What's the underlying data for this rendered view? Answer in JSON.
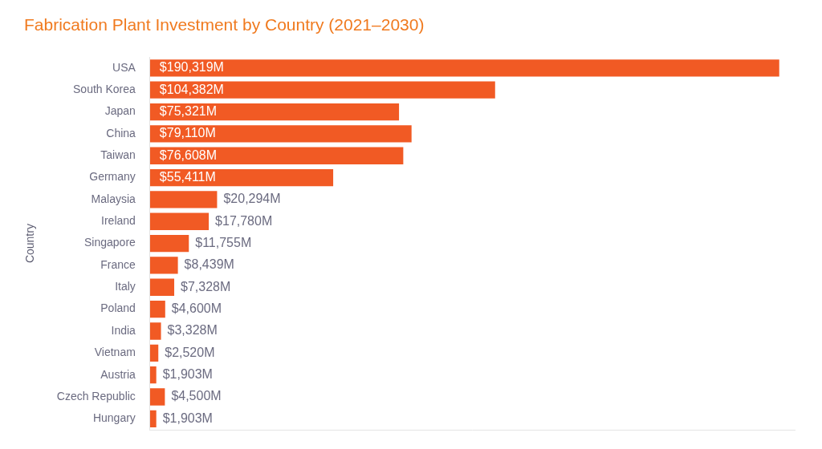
{
  "chart_data": {
    "type": "bar",
    "title": "Fabrication Plant Investment by Country (2021–2030)",
    "ylabel": "Country",
    "categories": [
      "USA",
      "South Korea",
      "Japan",
      "China",
      "Taiwan",
      "Germany",
      "Malaysia",
      "Ireland",
      "Singapore",
      "France",
      "Italy",
      "Poland",
      "India",
      "Vietnam",
      "Austria",
      "Czech Republic",
      "Hungary"
    ],
    "values": [
      190319,
      104382,
      75321,
      79110,
      76608,
      55411,
      20294,
      17780,
      11755,
      8439,
      7328,
      4600,
      3328,
      2520,
      1903,
      4500,
      1903
    ],
    "value_labels": [
      "$190,319M",
      "$104,382M",
      "$75,321M",
      "$79,110M",
      "$76,608M",
      "$55,411M",
      "$20,294M",
      "$17,780M",
      "$11,755M",
      "$8,439M",
      "$7,328M",
      "$4,600M",
      "$3,328M",
      "$2,520M",
      "$1,903M",
      "$4,500M",
      "$1,903M"
    ],
    "color": "#f15a24",
    "xlim": [
      0,
      195000
    ],
    "orientation": "horizontal",
    "data_labels": true,
    "tick_labels": "y",
    "grid": false
  }
}
